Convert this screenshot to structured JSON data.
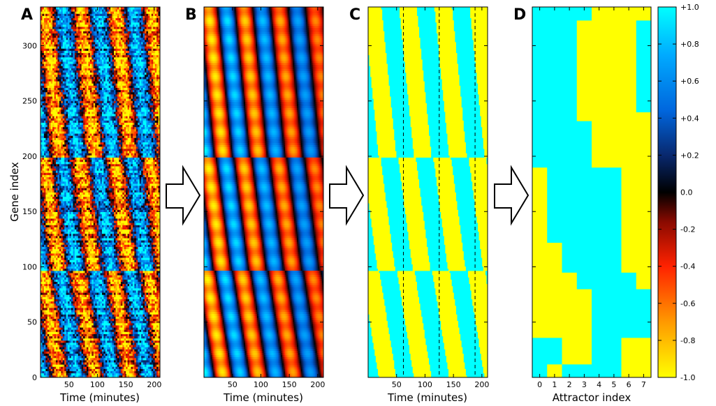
{
  "chart_data": [
    {
      "panel": "A",
      "type": "heatmap",
      "xlabel": "Time (minutes)",
      "ylabel": "Gene index",
      "x_ticks": [
        50,
        100,
        150,
        200
      ],
      "y_ticks": [
        0,
        50,
        100,
        150,
        200,
        250,
        300
      ],
      "xlim": [
        0,
        210
      ],
      "ylim": [
        0,
        335
      ],
      "color_range": [
        -1.0,
        1.0
      ],
      "oscillation_period_minutes": 62,
      "phase_breaks_gene_index": [
        97,
        200
      ]
    },
    {
      "panel": "B",
      "type": "heatmap",
      "xlabel": "Time (minutes)",
      "x_ticks": [
        50,
        100,
        150,
        200
      ],
      "xlim": [
        0,
        210
      ],
      "ylim": [
        0,
        335
      ],
      "color_range": [
        -1.0,
        1.0
      ],
      "oscillation_period_minutes": 62,
      "phase_breaks_gene_index": [
        97,
        200
      ]
    },
    {
      "panel": "C",
      "type": "heatmap",
      "xlabel": "Time (minutes)",
      "x_ticks": [
        50,
        100,
        150,
        200
      ],
      "xlim": [
        0,
        210
      ],
      "ylim": [
        0,
        335
      ],
      "values": [
        -1,
        1
      ],
      "dashed_lines_x": [
        62,
        125,
        188
      ]
    },
    {
      "panel": "D",
      "type": "heatmap",
      "xlabel": "Attractor index",
      "x_ticks": [
        0,
        1,
        2,
        3,
        4,
        5,
        6,
        7
      ],
      "ylim": [
        0,
        335
      ],
      "states": [
        {
          "from": 0,
          "to": 12,
          "cols": [
            1,
            -1,
            1,
            1,
            1,
            1,
            -1,
            -1
          ]
        },
        {
          "from": 12,
          "to": 36,
          "cols": [
            1,
            1,
            -1,
            -1,
            1,
            1,
            -1,
            -1
          ]
        },
        {
          "from": 36,
          "to": 80,
          "cols": [
            -1,
            -1,
            -1,
            -1,
            1,
            1,
            1,
            1
          ]
        },
        {
          "from": 80,
          "to": 95,
          "cols": [
            -1,
            -1,
            -1,
            1,
            1,
            1,
            1,
            -1
          ]
        },
        {
          "from": 95,
          "to": 122,
          "cols": [
            -1,
            -1,
            1,
            1,
            1,
            1,
            -1,
            -1
          ]
        },
        {
          "from": 122,
          "to": 190,
          "cols": [
            -1,
            1,
            1,
            1,
            1,
            1,
            -1,
            -1
          ]
        },
        {
          "from": 190,
          "to": 232,
          "cols": [
            1,
            1,
            1,
            1,
            -1,
            -1,
            -1,
            -1
          ]
        },
        {
          "from": 232,
          "to": 240,
          "cols": [
            1,
            1,
            1,
            -1,
            -1,
            -1,
            -1,
            -1
          ]
        },
        {
          "from": 240,
          "to": 323,
          "cols": [
            1,
            1,
            1,
            -1,
            -1,
            -1,
            -1,
            1
          ]
        },
        {
          "from": 323,
          "to": 335,
          "cols": [
            1,
            1,
            1,
            1,
            -1,
            -1,
            -1,
            -1
          ]
        }
      ]
    }
  ],
  "colorbar": {
    "ticks": [
      "-1.0",
      "-0.8",
      "-0.6",
      "-0.4",
      "-0.2",
      "0.0",
      "+0.2",
      "+0.4",
      "+0.6",
      "+0.8",
      "+1.0"
    ],
    "range": [
      -1.0,
      1.0
    ],
    "colors": {
      "neg_end": "#ffff00",
      "mid_neg": "#ff2200",
      "zero": "#000000",
      "mid_pos": "#0066dd",
      "pos_end": "#00ffff"
    }
  },
  "panel_labels": [
    "A",
    "B",
    "C",
    "D"
  ],
  "state_colors": {
    "on": "#00ffff",
    "off": "#ffff00"
  }
}
